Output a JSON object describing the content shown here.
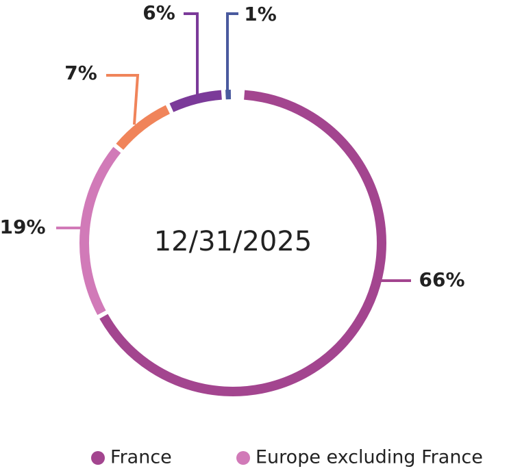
{
  "chart_data": {
    "type": "donut",
    "center_label": "12/31/2025",
    "categories": [
      "France",
      "Europe excluding France",
      null,
      null,
      null
    ],
    "values": [
      66,
      19,
      7,
      6,
      1
    ],
    "value_labels": [
      "66%",
      "19%",
      "7%",
      "6%",
      "1%"
    ],
    "colors": [
      "#a3458f",
      "#d17ab8",
      "#f0845a",
      "#7b3a99",
      "#4a5a9e"
    ]
  }
}
